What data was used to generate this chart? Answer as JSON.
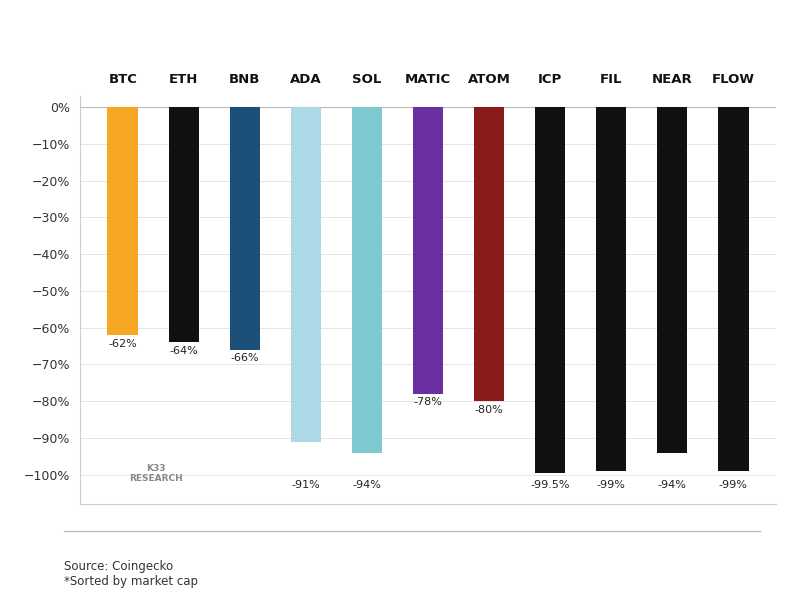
{
  "categories": [
    "BTC",
    "ETH",
    "BNB",
    "ADA",
    "SOL",
    "MATIC",
    "ATOM",
    "ICP",
    "FIL",
    "NEAR",
    "FLOW"
  ],
  "values": [
    -62,
    -64,
    -66,
    -91,
    -94,
    -78,
    -80,
    -99.5,
    -99,
    -94,
    -99
  ],
  "colors": [
    "#F5A623",
    "#111111",
    "#1D5078",
    "#ADD8E6",
    "#7EC8D0",
    "#6B2FA0",
    "#8B1A1A",
    "#111111",
    "#111111",
    "#111111",
    "#111111"
  ],
  "labels": [
    "-62%",
    "-64%",
    "-66%",
    "-91%",
    "-94%",
    "-78%",
    "-80%",
    "-99.5%",
    "-99%",
    "-94%",
    "-99%"
  ],
  "ylim": [
    -108,
    3
  ],
  "yticks": [
    0,
    -10,
    -20,
    -30,
    -40,
    -50,
    -60,
    -70,
    -80,
    -90,
    -100
  ],
  "ytick_labels": [
    "0%",
    "−10%",
    "−20%",
    "−30%",
    "−40%",
    "−50%",
    "−60%",
    "−70%",
    "−80%",
    "−90%",
    "−100%"
  ],
  "source_text": "Source: Coingecko\n*Sorted by market cap",
  "bg_color": "#FFFFFF",
  "short_bar_cats": [
    "BTC",
    "ETH",
    "BNB",
    "MATIC",
    "ATOM"
  ],
  "long_bar_cats": [
    "ADA",
    "SOL",
    "ICP",
    "FIL",
    "NEAR",
    "FLOW"
  ]
}
